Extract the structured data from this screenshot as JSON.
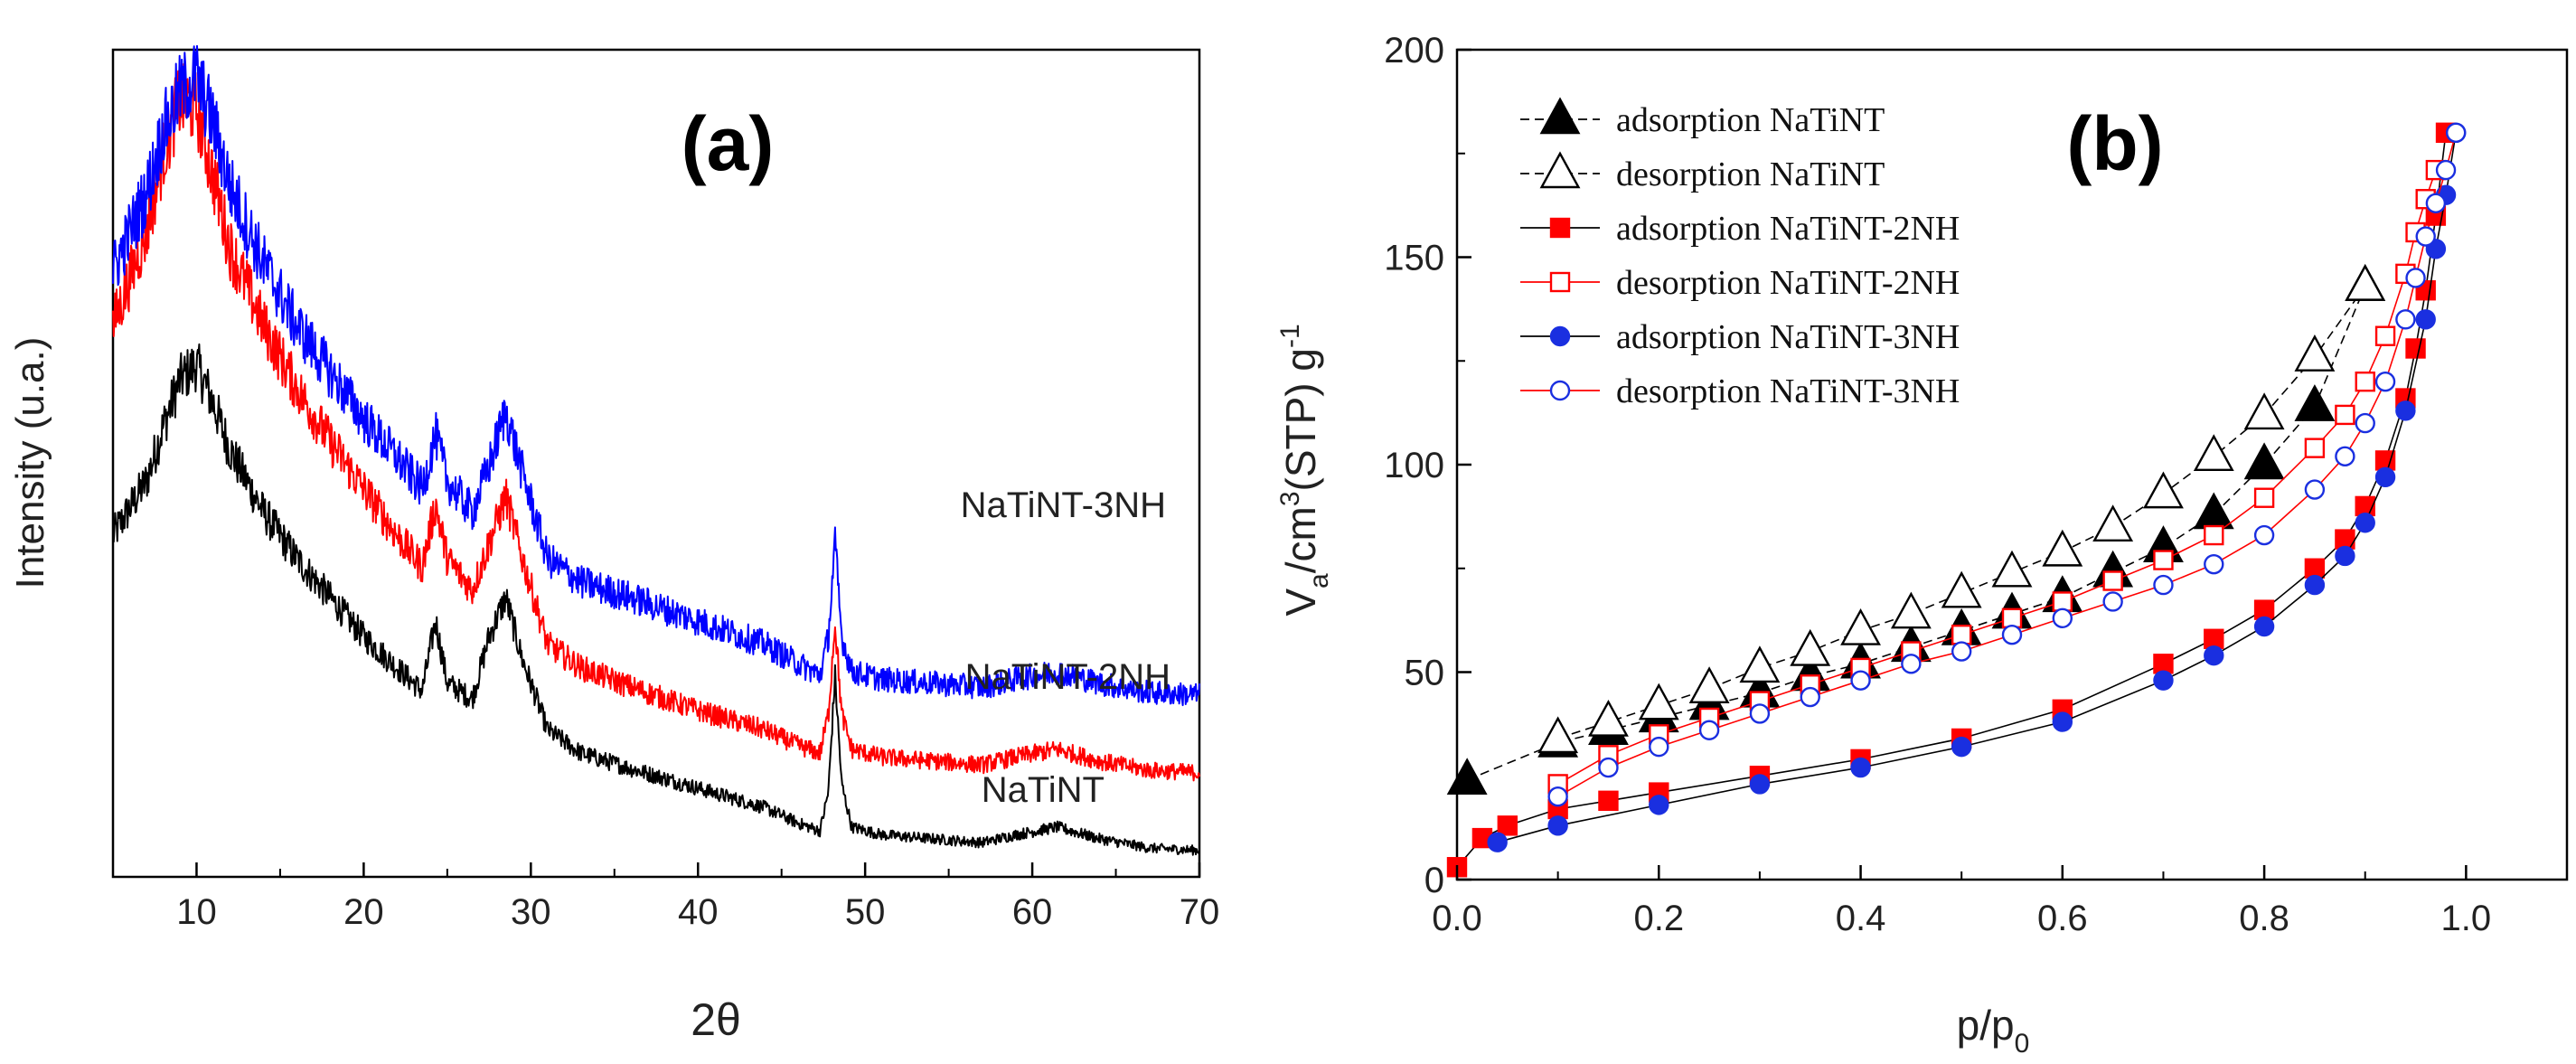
{
  "chart_data": [
    {
      "type": "line",
      "panel_label": "(a)",
      "xlabel": "2θ",
      "ylabel": "Intensity (u.a.)",
      "xlim": [
        5,
        70
      ],
      "x_ticks": [
        "10",
        "20",
        "30",
        "40",
        "50",
        "60",
        "70"
      ],
      "y_ticks_shown": false,
      "legend": "none; series labeled directly next to the traces",
      "series": [
        {
          "name": "NaTiNT",
          "color": "#000000",
          "offset": 0,
          "x": [
            5,
            7,
            8,
            9,
            10,
            11,
            12,
            14,
            16,
            18,
            20,
            22,
            23.5,
            24.3,
            25,
            26.5,
            27.5,
            28.5,
            29.5,
            31,
            33,
            36,
            40,
            44,
            46,
            47.3,
            47.8,
            48.2,
            48.6,
            49.2,
            51,
            54,
            57,
            59,
            61.5,
            64,
            67,
            70
          ],
          "y": [
            41,
            48,
            55,
            61,
            63,
            58,
            52,
            44,
            38,
            33,
            28,
            24,
            21,
            30,
            22,
            20,
            28,
            33,
            25,
            16,
            13,
            11,
            8.5,
            6,
            4,
            3,
            8,
            23,
            9,
            3.5,
            2.5,
            2,
            1.5,
            2.5,
            3.5,
            2,
            0.8,
            0.5
          ]
        },
        {
          "name": "NaTiNT-2NH",
          "color": "#ff0000",
          "offset": 10,
          "x": [
            5,
            7,
            8,
            9,
            10,
            11,
            12,
            14,
            16,
            18,
            20,
            22,
            23.5,
            24.3,
            25,
            26.5,
            27.5,
            28.5,
            29.5,
            31,
            33,
            36,
            40,
            44,
            46,
            47.3,
            47.8,
            48.2,
            48.6,
            49.2,
            51,
            54,
            57,
            59,
            61.5,
            64,
            67,
            70
          ],
          "y": [
            58,
            70,
            80,
            87,
            86,
            77,
            68,
            58,
            50,
            43,
            37,
            31,
            27,
            35,
            28,
            24,
            30,
            36,
            28,
            17,
            14,
            11.5,
            8.5,
            6,
            4,
            3,
            8,
            20,
            8,
            3.5,
            2.5,
            2,
            1.5,
            2.5,
            3.5,
            2,
            0.8,
            0.5
          ]
        },
        {
          "name": "NaTiNT-3NH",
          "color": "#0000ff",
          "offset": 20,
          "x": [
            5,
            7,
            8,
            9,
            10,
            11,
            12,
            14,
            16,
            18,
            20,
            22,
            23.5,
            24.3,
            25,
            26.5,
            27.5,
            28.5,
            29.5,
            31,
            33,
            36,
            40,
            44,
            46,
            47.3,
            47.8,
            48.2,
            48.6,
            49.2,
            51,
            54,
            57,
            59,
            61.5,
            64,
            67,
            70
          ],
          "y": [
            55,
            65,
            73,
            78,
            80,
            74,
            66,
            56,
            48,
            42,
            36,
            31,
            27,
            34,
            28,
            24,
            30,
            37,
            29,
            18,
            15,
            13,
            10,
            7,
            4.5,
            3,
            8,
            20,
            8,
            3.5,
            2.5,
            2,
            1.5,
            2.5,
            3.5,
            2,
            0.8,
            0.5
          ]
        }
      ]
    },
    {
      "type": "scatter",
      "panel_label": "(b)",
      "xlabel_main": "p/p",
      "xlabel_sub": "0",
      "ylabel_v": "V",
      "ylabel_sub": "a",
      "ylabel_mid": "/cm",
      "ylabel_sup": "3",
      "ylabel_rest": "(STP) g",
      "ylabel_sup2": "-1",
      "xlim": [
        0.0,
        1.1
      ],
      "ylim": [
        0,
        200
      ],
      "x_ticks": [
        "0.0",
        "0.2",
        "0.4",
        "0.6",
        "0.8",
        "1.0"
      ],
      "y_ticks": [
        "0",
        "50",
        "100",
        "150",
        "200"
      ],
      "legend_position": "top-left",
      "series": [
        {
          "name": "adsorption NaTiNT",
          "marker": "triangle",
          "filled": true,
          "color": "#000000",
          "line_color": "#000000",
          "dashed": true,
          "x": [
            0.01,
            0.1,
            0.15,
            0.2,
            0.25,
            0.3,
            0.35,
            0.4,
            0.45,
            0.5,
            0.55,
            0.6,
            0.65,
            0.7,
            0.75,
            0.8,
            0.85,
            0.9
          ],
          "y": [
            24,
            33,
            36,
            39,
            42,
            45,
            49,
            52,
            56,
            60,
            64,
            68,
            74,
            80,
            88,
            100,
            114,
            143
          ]
        },
        {
          "name": "desorption NaTiNT",
          "marker": "triangle",
          "filled": false,
          "color": "#000000",
          "line_color": "#000000",
          "dashed": true,
          "x": [
            0.1,
            0.15,
            0.2,
            0.25,
            0.3,
            0.35,
            0.4,
            0.45,
            0.5,
            0.55,
            0.6,
            0.65,
            0.7,
            0.75,
            0.8,
            0.85,
            0.9
          ],
          "y": [
            34,
            38,
            42,
            46,
            51,
            55,
            60,
            64,
            69,
            74,
            79,
            85,
            93,
            102,
            112,
            126,
            143
          ]
        },
        {
          "name": "adsorption NaTiNT-2NH",
          "marker": "square",
          "filled": true,
          "color": "#ff0000",
          "line_color": "#000000",
          "dashed": false,
          "x": [
            0.0,
            0.025,
            0.05,
            0.1,
            0.15,
            0.2,
            0.3,
            0.4,
            0.5,
            0.6,
            0.7,
            0.75,
            0.8,
            0.85,
            0.88,
            0.9,
            0.92,
            0.94,
            0.95,
            0.96,
            0.97,
            0.98
          ],
          "y": [
            3,
            10,
            13,
            17,
            19,
            21,
            25,
            29,
            34,
            41,
            52,
            58,
            65,
            75,
            82,
            90,
            101,
            116,
            128,
            142,
            160,
            180
          ]
        },
        {
          "name": "desorption NaTiNT-2NH",
          "marker": "square",
          "filled": false,
          "color": "#ff0000",
          "line_color": "#ff0000",
          "dashed": false,
          "x": [
            0.1,
            0.15,
            0.2,
            0.25,
            0.3,
            0.35,
            0.4,
            0.45,
            0.5,
            0.55,
            0.6,
            0.65,
            0.7,
            0.75,
            0.8,
            0.85,
            0.88,
            0.9,
            0.92,
            0.94,
            0.95,
            0.96,
            0.97
          ],
          "y": [
            23,
            30,
            35,
            39,
            43,
            47,
            51,
            55,
            59,
            63,
            67,
            72,
            77,
            83,
            92,
            104,
            112,
            120,
            131,
            146,
            156,
            164,
            171
          ]
        },
        {
          "name": "adsorption NaTiNT-3NH",
          "marker": "circle",
          "filled": true,
          "color": "#1a2fe0",
          "line_color": "#000000",
          "dashed": false,
          "x": [
            0.04,
            0.1,
            0.2,
            0.3,
            0.4,
            0.5,
            0.6,
            0.7,
            0.75,
            0.8,
            0.85,
            0.88,
            0.9,
            0.92,
            0.94,
            0.96,
            0.97,
            0.98,
            0.99
          ],
          "y": [
            9,
            13,
            18,
            23,
            27,
            32,
            38,
            48,
            54,
            61,
            71,
            78,
            86,
            97,
            113,
            135,
            152,
            165,
            180
          ]
        },
        {
          "name": "desorption NaTiNT-3NH",
          "marker": "circle",
          "filled": false,
          "color": "#1a2fe0",
          "line_color": "#ff0000",
          "dashed": false,
          "x": [
            0.1,
            0.15,
            0.2,
            0.25,
            0.3,
            0.35,
            0.4,
            0.45,
            0.5,
            0.55,
            0.6,
            0.65,
            0.7,
            0.75,
            0.8,
            0.85,
            0.88,
            0.9,
            0.92,
            0.94,
            0.95,
            0.96,
            0.97,
            0.98,
            0.99
          ],
          "y": [
            20,
            27,
            32,
            36,
            40,
            44,
            48,
            52,
            55,
            59,
            63,
            67,
            71,
            76,
            83,
            94,
            102,
            110,
            120,
            135,
            145,
            155,
            163,
            171,
            180
          ]
        }
      ]
    }
  ]
}
